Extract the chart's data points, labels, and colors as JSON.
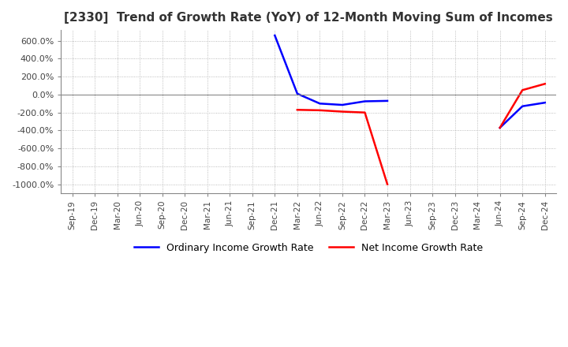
{
  "title": "[2330]  Trend of Growth Rate (YoY) of 12-Month Moving Sum of Incomes",
  "title_fontsize": 11,
  "legend_labels": [
    "Ordinary Income Growth Rate",
    "Net Income Growth Rate"
  ],
  "line_colors": [
    "blue",
    "red"
  ],
  "x_labels": [
    "Sep-19",
    "Dec-19",
    "Mar-20",
    "Jun-20",
    "Sep-20",
    "Dec-20",
    "Mar-21",
    "Jun-21",
    "Sep-21",
    "Dec-21",
    "Mar-22",
    "Jun-22",
    "Sep-22",
    "Dec-22",
    "Mar-23",
    "Jun-23",
    "Sep-23",
    "Dec-23",
    "Mar-24",
    "Jun-24",
    "Sep-24",
    "Dec-24"
  ],
  "ylim": [
    -1100,
    720
  ],
  "yticks": [
    600,
    400,
    200,
    0,
    -200,
    -400,
    -600,
    -800,
    -1000
  ],
  "ytick_labels": [
    "600.0%",
    "400.0%",
    "200.0%",
    "0.0%",
    "-200.0%",
    "-400.0%",
    "-600.0%",
    "-800.0%",
    "-1000.0%"
  ],
  "ordinary_income_gr_segments": [
    [
      [
        9,
        660
      ],
      [
        10,
        10
      ],
      [
        11,
        -100
      ],
      [
        12,
        -115
      ],
      [
        13,
        -75
      ],
      [
        14,
        -70
      ]
    ],
    [
      [
        19,
        -370
      ],
      [
        20,
        -130
      ],
      [
        21,
        -90
      ]
    ]
  ],
  "net_income_gr_segments": [
    [
      [
        10,
        -170
      ],
      [
        11,
        -175
      ],
      [
        12,
        -190
      ],
      [
        13,
        -200
      ],
      [
        14,
        -1000
      ]
    ],
    [
      [
        19,
        -370
      ],
      [
        20,
        50
      ],
      [
        21,
        120
      ]
    ]
  ],
  "background_color": "#ffffff",
  "grid_color": "#aaaaaa",
  "grid_style": "dotted",
  "plot_bg_color": "#ffffff"
}
